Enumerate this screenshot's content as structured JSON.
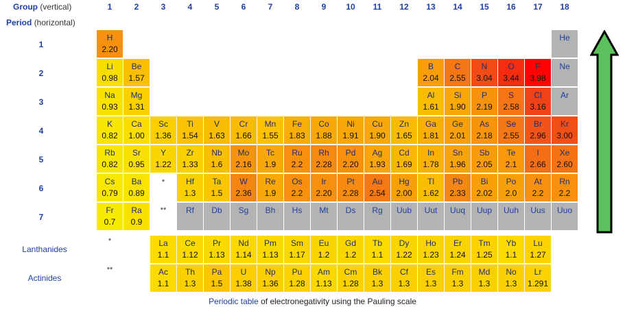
{
  "header": {
    "group_label": "Group",
    "group_sub": "(vertical)",
    "period_label": "Period",
    "period_sub": "(horizontal)"
  },
  "groups": [
    "1",
    "2",
    "3",
    "4",
    "5",
    "6",
    "7",
    "8",
    "9",
    "10",
    "11",
    "12",
    "13",
    "14",
    "15",
    "16",
    "17",
    "18"
  ],
  "periods": [
    "1",
    "2",
    "3",
    "4",
    "5",
    "6",
    "7"
  ],
  "row_labels": {
    "lanthanides": "Lanthanides",
    "actinides": "Actinides"
  },
  "markers": {
    "single": "*",
    "double": "**"
  },
  "elements": [
    {
      "sym": "H",
      "en": "2.20",
      "period": 1,
      "group": 1
    },
    {
      "sym": "He",
      "en": "",
      "period": 1,
      "group": 18
    },
    {
      "sym": "Li",
      "en": "0.98",
      "period": 2,
      "group": 1
    },
    {
      "sym": "Be",
      "en": "1.57",
      "period": 2,
      "group": 2
    },
    {
      "sym": "B",
      "en": "2.04",
      "period": 2,
      "group": 13
    },
    {
      "sym": "C",
      "en": "2.55",
      "period": 2,
      "group": 14
    },
    {
      "sym": "N",
      "en": "3.04",
      "period": 2,
      "group": 15
    },
    {
      "sym": "O",
      "en": "3.44",
      "period": 2,
      "group": 16
    },
    {
      "sym": "F",
      "en": "3.98",
      "period": 2,
      "group": 17
    },
    {
      "sym": "Ne",
      "en": "",
      "period": 2,
      "group": 18
    },
    {
      "sym": "Na",
      "en": "0.93",
      "period": 3,
      "group": 1
    },
    {
      "sym": "Mg",
      "en": "1.31",
      "period": 3,
      "group": 2
    },
    {
      "sym": "Al",
      "en": "1.61",
      "period": 3,
      "group": 13
    },
    {
      "sym": "Si",
      "en": "1.90",
      "period": 3,
      "group": 14
    },
    {
      "sym": "P",
      "en": "2.19",
      "period": 3,
      "group": 15
    },
    {
      "sym": "S",
      "en": "2.58",
      "period": 3,
      "group": 16
    },
    {
      "sym": "Cl",
      "en": "3.16",
      "period": 3,
      "group": 17
    },
    {
      "sym": "Ar",
      "en": "",
      "period": 3,
      "group": 18
    },
    {
      "sym": "K",
      "en": "0.82",
      "period": 4,
      "group": 1
    },
    {
      "sym": "Ca",
      "en": "1.00",
      "period": 4,
      "group": 2
    },
    {
      "sym": "Sc",
      "en": "1.36",
      "period": 4,
      "group": 3
    },
    {
      "sym": "Ti",
      "en": "1.54",
      "period": 4,
      "group": 4
    },
    {
      "sym": "V",
      "en": "1.63",
      "period": 4,
      "group": 5
    },
    {
      "sym": "Cr",
      "en": "1.66",
      "period": 4,
      "group": 6
    },
    {
      "sym": "Mn",
      "en": "1.55",
      "period": 4,
      "group": 7
    },
    {
      "sym": "Fe",
      "en": "1.83",
      "period": 4,
      "group": 8
    },
    {
      "sym": "Co",
      "en": "1.88",
      "period": 4,
      "group": 9
    },
    {
      "sym": "Ni",
      "en": "1.91",
      "period": 4,
      "group": 10
    },
    {
      "sym": "Cu",
      "en": "1.90",
      "period": 4,
      "group": 11
    },
    {
      "sym": "Zn",
      "en": "1.65",
      "period": 4,
      "group": 12
    },
    {
      "sym": "Ga",
      "en": "1.81",
      "period": 4,
      "group": 13
    },
    {
      "sym": "Ge",
      "en": "2.01",
      "period": 4,
      "group": 14
    },
    {
      "sym": "As",
      "en": "2.18",
      "period": 4,
      "group": 15
    },
    {
      "sym": "Se",
      "en": "2.55",
      "period": 4,
      "group": 16
    },
    {
      "sym": "Br",
      "en": "2.96",
      "period": 4,
      "group": 17
    },
    {
      "sym": "Kr",
      "en": "3.00",
      "period": 4,
      "group": 18
    },
    {
      "sym": "Rb",
      "en": "0.82",
      "period": 5,
      "group": 1
    },
    {
      "sym": "Sr",
      "en": "0.95",
      "period": 5,
      "group": 2
    },
    {
      "sym": "Y",
      "en": "1.22",
      "period": 5,
      "group": 3
    },
    {
      "sym": "Zr",
      "en": "1.33",
      "period": 5,
      "group": 4
    },
    {
      "sym": "Nb",
      "en": "1.6",
      "period": 5,
      "group": 5
    },
    {
      "sym": "Mo",
      "en": "2.16",
      "period": 5,
      "group": 6
    },
    {
      "sym": "Tc",
      "en": "1.9",
      "period": 5,
      "group": 7
    },
    {
      "sym": "Ru",
      "en": "2.2",
      "period": 5,
      "group": 8
    },
    {
      "sym": "Rh",
      "en": "2.28",
      "period": 5,
      "group": 9
    },
    {
      "sym": "Pd",
      "en": "2.20",
      "period": 5,
      "group": 10
    },
    {
      "sym": "Ag",
      "en": "1.93",
      "period": 5,
      "group": 11
    },
    {
      "sym": "Cd",
      "en": "1.69",
      "period": 5,
      "group": 12
    },
    {
      "sym": "In",
      "en": "1.78",
      "period": 5,
      "group": 13
    },
    {
      "sym": "Sn",
      "en": "1.96",
      "period": 5,
      "group": 14
    },
    {
      "sym": "Sb",
      "en": "2.05",
      "period": 5,
      "group": 15
    },
    {
      "sym": "Te",
      "en": "2.1",
      "period": 5,
      "group": 16
    },
    {
      "sym": "I",
      "en": "2.66",
      "period": 5,
      "group": 17
    },
    {
      "sym": "Xe",
      "en": "2.60",
      "period": 5,
      "group": 18
    },
    {
      "sym": "Cs",
      "en": "0.79",
      "period": 6,
      "group": 1
    },
    {
      "sym": "Ba",
      "en": "0.89",
      "period": 6,
      "group": 2
    },
    {
      "sym": "Hf",
      "en": "1.3",
      "period": 6,
      "group": 4
    },
    {
      "sym": "Ta",
      "en": "1.5",
      "period": 6,
      "group": 5
    },
    {
      "sym": "W",
      "en": "2.36",
      "period": 6,
      "group": 6
    },
    {
      "sym": "Re",
      "en": "1.9",
      "period": 6,
      "group": 7
    },
    {
      "sym": "Os",
      "en": "2.2",
      "period": 6,
      "group": 8
    },
    {
      "sym": "Ir",
      "en": "2.20",
      "period": 6,
      "group": 9
    },
    {
      "sym": "Pt",
      "en": "2.28",
      "period": 6,
      "group": 10
    },
    {
      "sym": "Au",
      "en": "2.54",
      "period": 6,
      "group": 11
    },
    {
      "sym": "Hg",
      "en": "2.00",
      "period": 6,
      "group": 12
    },
    {
      "sym": "Tl",
      "en": "1.62",
      "period": 6,
      "group": 13
    },
    {
      "sym": "Pb",
      "en": "2.33",
      "period": 6,
      "group": 14
    },
    {
      "sym": "Bi",
      "en": "2.02",
      "period": 6,
      "group": 15
    },
    {
      "sym": "Po",
      "en": "2.0",
      "period": 6,
      "group": 16
    },
    {
      "sym": "At",
      "en": "2.2",
      "period": 6,
      "group": 17
    },
    {
      "sym": "Rn",
      "en": "2.2",
      "period": 6,
      "group": 18
    },
    {
      "sym": "Fr",
      "en": "0.7",
      "period": 7,
      "group": 1
    },
    {
      "sym": "Ra",
      "en": "0.9",
      "period": 7,
      "group": 2
    },
    {
      "sym": "Rf",
      "en": "",
      "period": 7,
      "group": 4
    },
    {
      "sym": "Db",
      "en": "",
      "period": 7,
      "group": 5
    },
    {
      "sym": "Sg",
      "en": "",
      "period": 7,
      "group": 6
    },
    {
      "sym": "Bh",
      "en": "",
      "period": 7,
      "group": 7
    },
    {
      "sym": "Hs",
      "en": "",
      "period": 7,
      "group": 8
    },
    {
      "sym": "Mt",
      "en": "",
      "period": 7,
      "group": 9
    },
    {
      "sym": "Ds",
      "en": "",
      "period": 7,
      "group": 10
    },
    {
      "sym": "Rg",
      "en": "",
      "period": 7,
      "group": 11
    },
    {
      "sym": "Uub",
      "en": "",
      "period": 7,
      "group": 12
    },
    {
      "sym": "Uut",
      "en": "",
      "period": 7,
      "group": 13
    },
    {
      "sym": "Uuq",
      "en": "",
      "period": 7,
      "group": 14
    },
    {
      "sym": "Uup",
      "en": "",
      "period": 7,
      "group": 15
    },
    {
      "sym": "Uuh",
      "en": "",
      "period": 7,
      "group": 16
    },
    {
      "sym": "Uus",
      "en": "",
      "period": 7,
      "group": 17
    },
    {
      "sym": "Uuo",
      "en": "",
      "period": 7,
      "group": 18
    }
  ],
  "lanthanides": [
    {
      "sym": "La",
      "en": "1.1"
    },
    {
      "sym": "Ce",
      "en": "1.12"
    },
    {
      "sym": "Pr",
      "en": "1.13"
    },
    {
      "sym": "Nd",
      "en": "1.14"
    },
    {
      "sym": "Pm",
      "en": "1.13"
    },
    {
      "sym": "Sm",
      "en": "1.17"
    },
    {
      "sym": "Eu",
      "en": "1.2"
    },
    {
      "sym": "Gd",
      "en": "1.2"
    },
    {
      "sym": "Tb",
      "en": "1.1"
    },
    {
      "sym": "Dy",
      "en": "1.22"
    },
    {
      "sym": "Ho",
      "en": "1.23"
    },
    {
      "sym": "Er",
      "en": "1.24"
    },
    {
      "sym": "Tm",
      "en": "1.25"
    },
    {
      "sym": "Yb",
      "en": "1.1"
    },
    {
      "sym": "Lu",
      "en": "1.27"
    }
  ],
  "actinides": [
    {
      "sym": "Ac",
      "en": "1.1"
    },
    {
      "sym": "Th",
      "en": "1.3"
    },
    {
      "sym": "Pa",
      "en": "1.5"
    },
    {
      "sym": "U",
      "en": "1.38"
    },
    {
      "sym": "Np",
      "en": "1.36"
    },
    {
      "sym": "Pu",
      "en": "1.28"
    },
    {
      "sym": "Am",
      "en": "1.13"
    },
    {
      "sym": "Cm",
      "en": "1.28"
    },
    {
      "sym": "Bk",
      "en": "1.3"
    },
    {
      "sym": "Cf",
      "en": "1.3"
    },
    {
      "sym": "Es",
      "en": "1.3"
    },
    {
      "sym": "Fm",
      "en": "1.3"
    },
    {
      "sym": "Md",
      "en": "1.3"
    },
    {
      "sym": "No",
      "en": "1.3"
    },
    {
      "sym": "Lr",
      "en": "1.291"
    }
  ],
  "caption": {
    "link": "Periodic table",
    "rest": " of electronegativity using the Pauling scale"
  },
  "colors": {
    "no_data": "#b3b3b3",
    "low": "#f9e600",
    "high": "#ff1a1a",
    "arrow_fill": "#5cc15c",
    "label_blue": "#1f3f9f"
  },
  "icons": {
    "arrow": "up-arrow-icon"
  }
}
